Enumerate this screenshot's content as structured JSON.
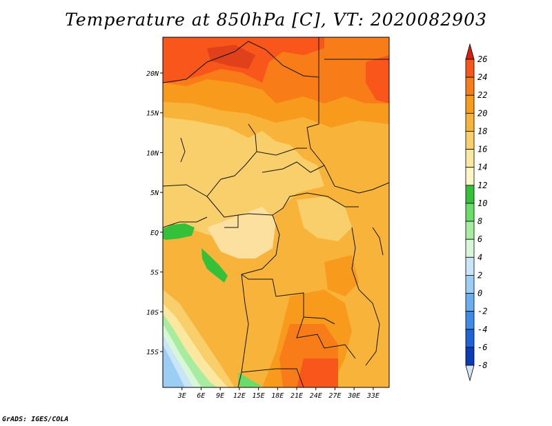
{
  "title": "Temperature at 850hPa [C], VT: 2020082903",
  "credit": "GrADS: IGES/COLA",
  "map": {
    "lat_range": [
      -19.5,
      24.5
    ],
    "lon_range": [
      0,
      35.5
    ],
    "lat_ticks": [
      {
        "value": 20,
        "label": "20N"
      },
      {
        "value": 15,
        "label": "15N"
      },
      {
        "value": 10,
        "label": "10N"
      },
      {
        "value": 5,
        "label": "5N"
      },
      {
        "value": 0,
        "label": "EQ"
      },
      {
        "value": -5,
        "label": "5S"
      },
      {
        "value": -10,
        "label": "10S"
      },
      {
        "value": -15,
        "label": "15S"
      }
    ],
    "lon_ticks": [
      {
        "value": 3,
        "label": "3E"
      },
      {
        "value": 6,
        "label": "6E"
      },
      {
        "value": 9,
        "label": "9E"
      },
      {
        "value": 12,
        "label": "12E"
      },
      {
        "value": 15,
        "label": "15E"
      },
      {
        "value": 18,
        "label": "18E"
      },
      {
        "value": 21,
        "label": "21E"
      },
      {
        "value": 24,
        "label": "24E"
      },
      {
        "value": 27,
        "label": "27E"
      },
      {
        "value": 30,
        "label": "30E"
      },
      {
        "value": 33,
        "label": "33E"
      }
    ]
  },
  "colorbar": {
    "levels": [
      "26",
      "24",
      "22",
      "20",
      "18",
      "16",
      "14",
      "12",
      "10",
      "8",
      "6",
      "4",
      "2",
      "0",
      "-2",
      "-4",
      "-6",
      "-8"
    ],
    "colors": [
      "#f03c1c",
      "#f8561a",
      "#f87d18",
      "#f89a1c",
      "#f8b43a",
      "#f8cf6a",
      "#fbe8a0",
      "#fdf7c8",
      "#35c03a",
      "#6adc6a",
      "#a8eca0",
      "#d8f6d8",
      "#c9e6f8",
      "#9ccef3",
      "#6aaef0",
      "#3c8ce8",
      "#1e64d8",
      "#0a3cb8",
      "#001a70"
    ],
    "top_color": "#d81e10",
    "bottom_color": "#d8e4f8"
  }
}
